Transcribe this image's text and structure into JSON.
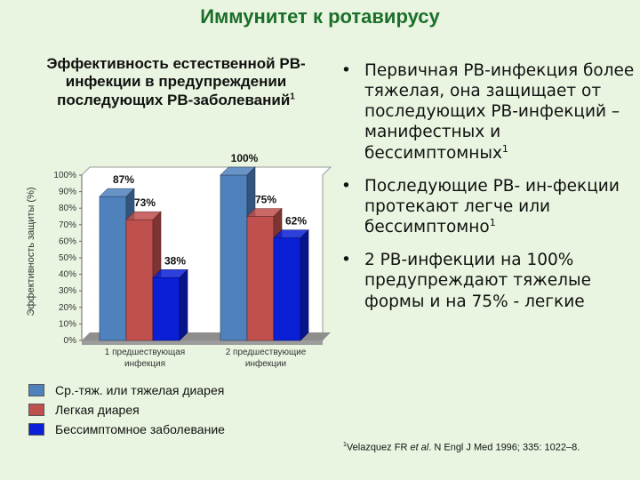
{
  "slide_title": "Иммунитет к ротавирусу",
  "chart_data": {
    "type": "bar",
    "title": "Эффективность естественной РВ-инфекции в предупреждении последующих РВ-заболеваний",
    "title_sup": "1",
    "ylabel": "Эффективность защиты (%)",
    "xlabel": "",
    "ylim": [
      0,
      100
    ],
    "y_ticks": [
      "0%",
      "10%",
      "20%",
      "30%",
      "40%",
      "50%",
      "60%",
      "70%",
      "80%",
      "90%",
      "100%"
    ],
    "categories": [
      "1 предшествующая инфекция",
      "2 предшествующие инфекции"
    ],
    "category_lines": [
      [
        "1 предшествующая",
        "инфекция"
      ],
      [
        "2 предшествующие",
        "инфекции"
      ]
    ],
    "series": [
      {
        "name": "Ср.-тяж. или тяжелая диарея",
        "values": [
          87,
          100
        ],
        "labels": [
          "87%",
          "100%"
        ]
      },
      {
        "name": "Легкая диарея",
        "values": [
          73,
          75
        ],
        "labels": [
          "73%",
          "75%"
        ]
      },
      {
        "name": "Бессимптомное заболевание",
        "values": [
          38,
          62
        ],
        "labels": [
          "38%",
          "62%"
        ]
      }
    ],
    "colors": [
      "#4f81bd",
      "#c0504d",
      "#0a1fd6"
    ],
    "grid": false,
    "legend_position": "bottom-left",
    "projection": "3d"
  },
  "bullets": [
    {
      "text": "Первичная РВ-инфекция более тяжелая, она защищает от последующих РВ-инфекций – манифестных и бессимптомных",
      "sup": "1"
    },
    {
      "text": "Последующие РВ- ин-фекции протекают легче или бессимптомно",
      "sup": "1"
    },
    {
      "text": "2 РВ-инфекции на 100% предупреждают тяжелые формы и на 75% - легкие",
      "sup": ""
    }
  ],
  "reference": {
    "sup": "1",
    "text_before": "Velazquez FR ",
    "italic": "et al",
    "text_after": ". N Engl J Med 1996; 335: 1022–8."
  }
}
